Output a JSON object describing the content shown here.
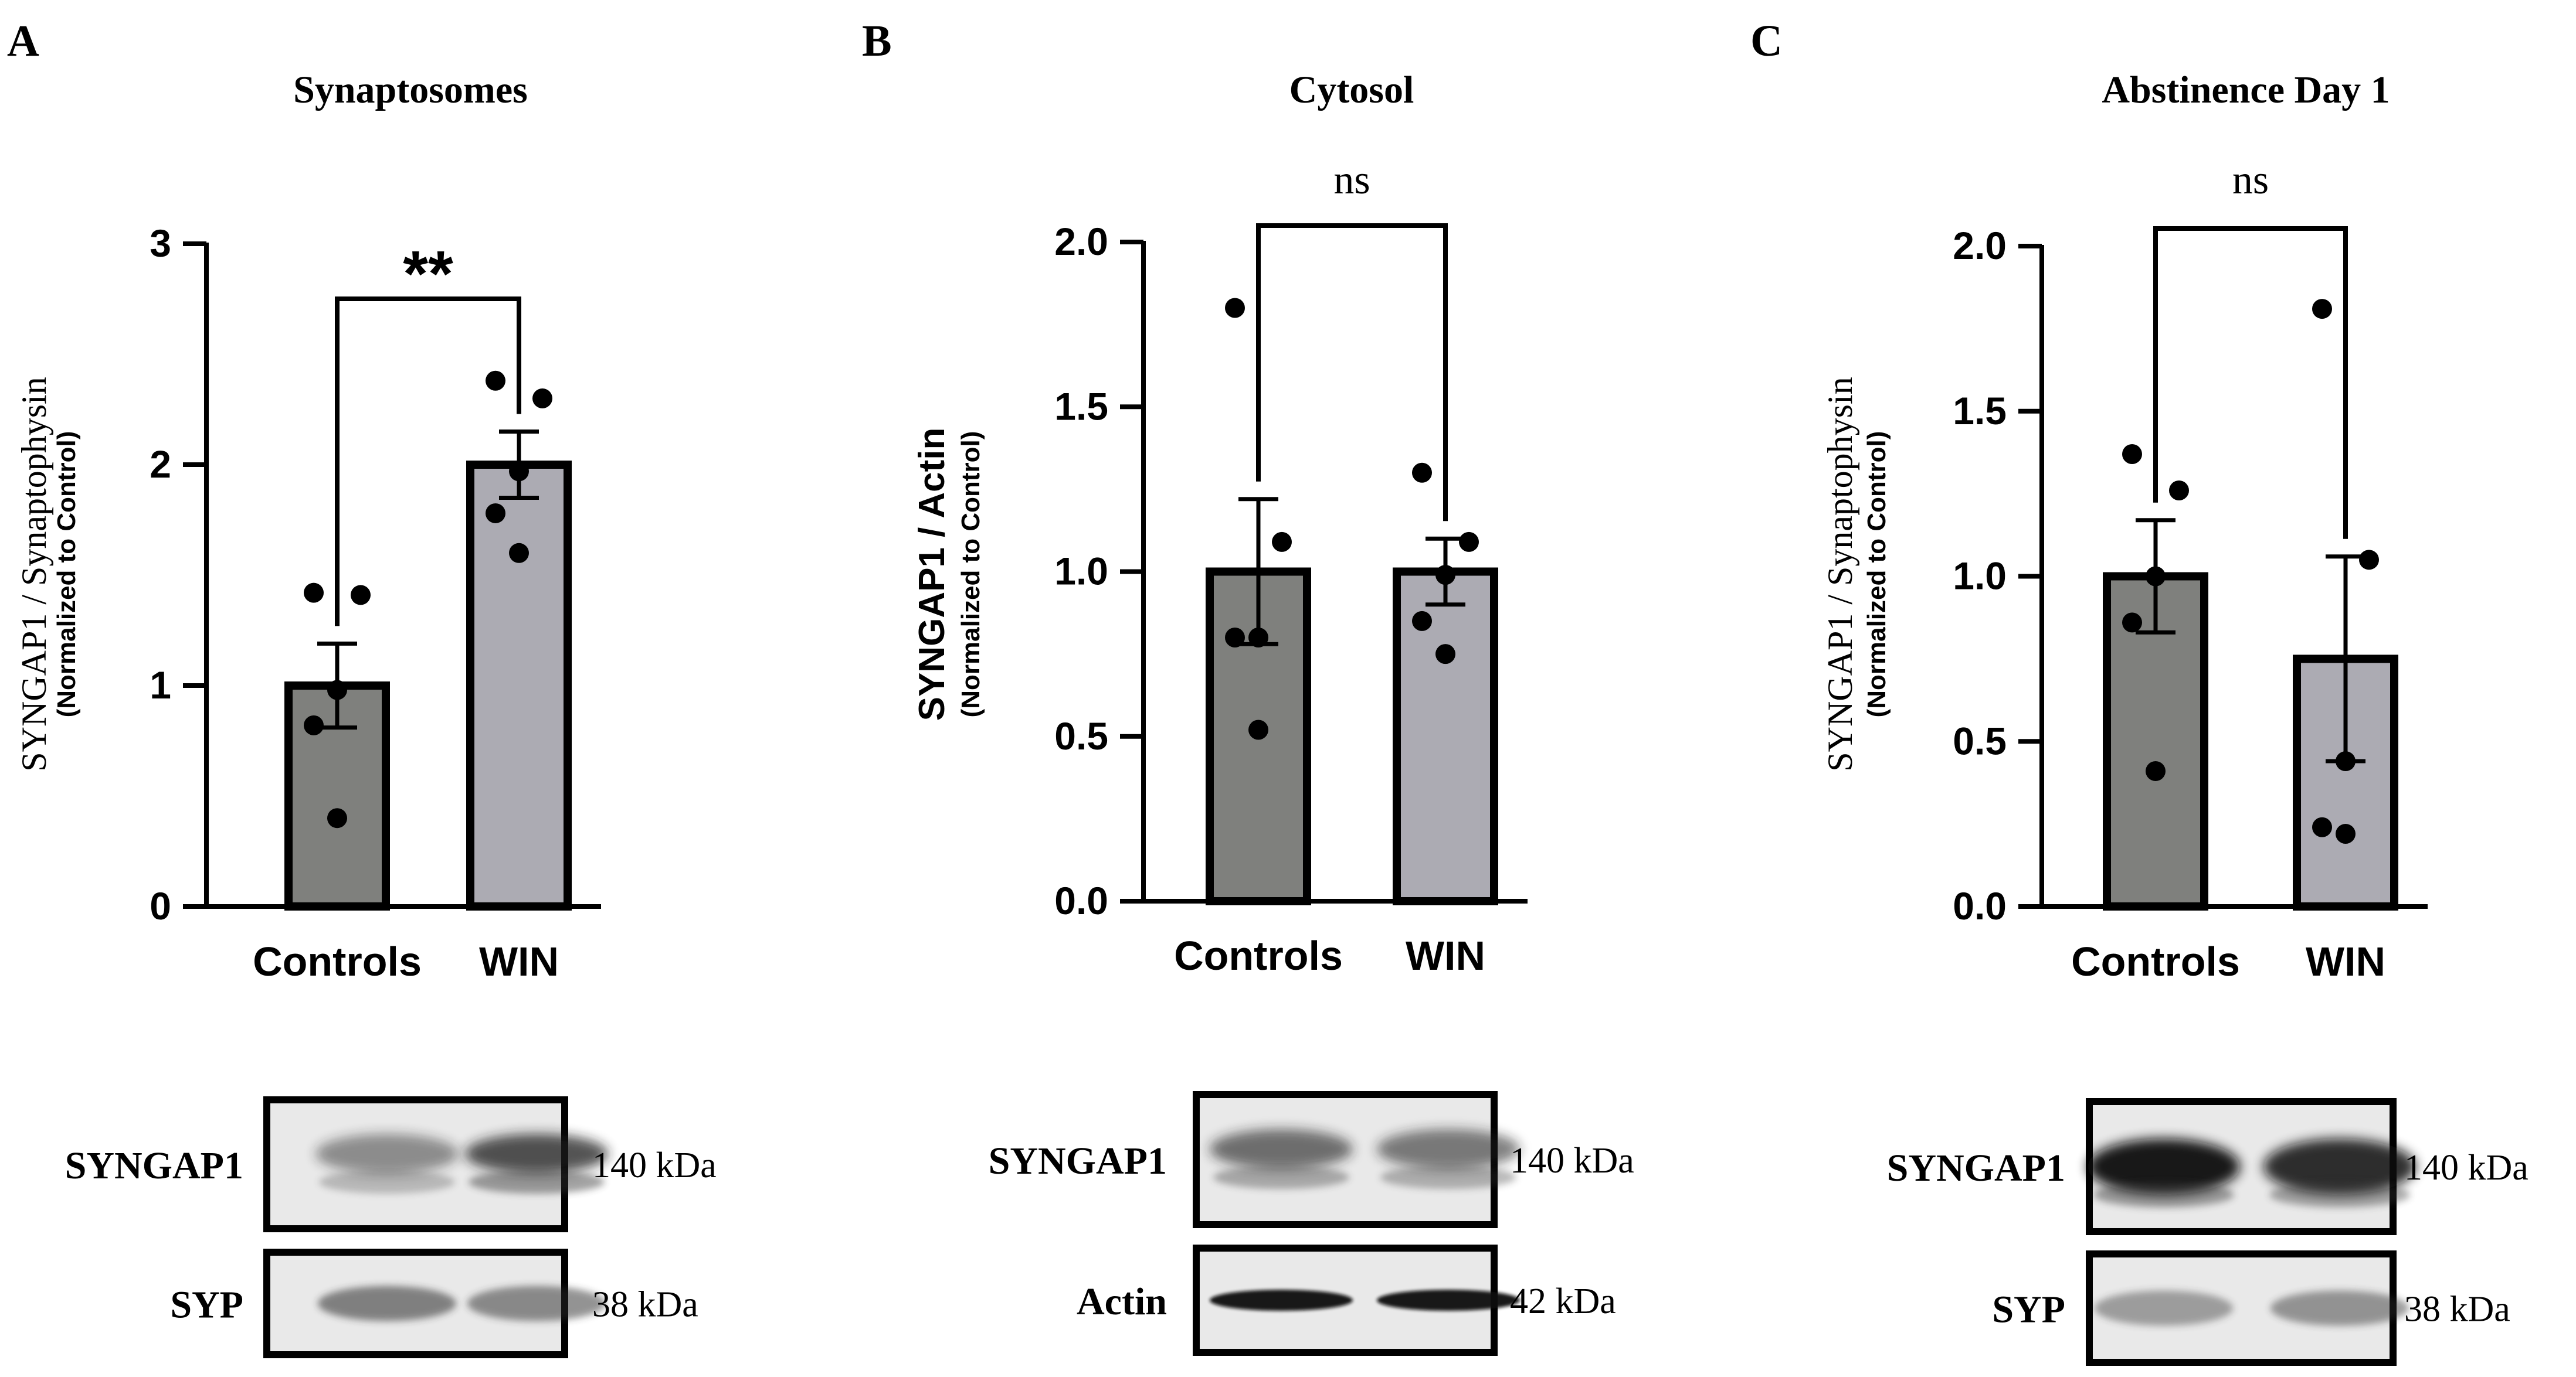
{
  "panels": [
    {
      "letter": "A",
      "title": "Synaptosomes",
      "ylabel": "SYNGAP1 / Synaptophysin",
      "ylabel2": "(Normalized to Control)",
      "significance": "**",
      "blots": [
        {
          "protein": "SYNGAP1",
          "size": "140 kDa",
          "style": "diffuse",
          "intensity": [
            0.45,
            0.75
          ]
        },
        {
          "protein": "SYP",
          "size": "38 kDa",
          "style": "band",
          "intensity": [
            0.55,
            0.5
          ]
        }
      ]
    },
    {
      "letter": "B",
      "title": "Cytosol",
      "ylabel": "SYNGAP1 / Actin",
      "ylabel2": "(Normalized to Control)",
      "significance": "ns",
      "blots": [
        {
          "protein": "SYNGAP1",
          "size": "140 kDa",
          "style": "diffuse",
          "intensity": [
            0.6,
            0.55
          ]
        },
        {
          "protein": "Actin",
          "size": "42 kDa",
          "style": "sharp",
          "intensity": [
            0.95,
            0.95
          ]
        }
      ]
    },
    {
      "letter": "C",
      "title": "Abstinence Day 1",
      "ylabel": "SYNGAP1 / Synaptophysin",
      "ylabel2": "(Normalized to Control)",
      "significance": "ns",
      "blots": [
        {
          "protein": "SYNGAP1",
          "size": "140 kDa",
          "style": "strong",
          "intensity": [
            0.95,
            0.85
          ]
        },
        {
          "protein": "SYP",
          "size": "38 kDa",
          "style": "band",
          "intensity": [
            0.4,
            0.45
          ]
        }
      ]
    }
  ],
  "chart_data": [
    {
      "type": "bar",
      "title": "Synaptosomes",
      "ylabel": "SYNGAP1 / Synaptophysin (Normalized to Control)",
      "categories": [
        "Controls",
        "WIN"
      ],
      "values": [
        1.0,
        2.0
      ],
      "errors": [
        0.19,
        0.15
      ],
      "points": [
        [
          1.42,
          1.41,
          0.98,
          0.82,
          0.4
        ],
        [
          2.38,
          2.3,
          1.97,
          1.78,
          1.6
        ]
      ],
      "bar_colors": [
        "#7f807d",
        "#acabb3"
      ],
      "ylim": [
        0,
        3
      ],
      "yticks": [
        "0",
        "1",
        "2",
        "3"
      ],
      "ytick_values": [
        0,
        1,
        2,
        3
      ]
    },
    {
      "type": "bar",
      "title": "Cytosol",
      "ylabel": "SYNGAP1 / Actin (Normalized to Control)",
      "categories": [
        "Controls",
        "WIN"
      ],
      "values": [
        1.0,
        1.0
      ],
      "errors": [
        0.22,
        0.1
      ],
      "points": [
        [
          1.8,
          1.09,
          0.8,
          0.8,
          0.52
        ],
        [
          1.3,
          1.09,
          0.99,
          0.85,
          0.75
        ]
      ],
      "bar_colors": [
        "#7f807d",
        "#acabb3"
      ],
      "ylim": [
        0,
        2
      ],
      "yticks": [
        "0.0",
        "0.5",
        "1.0",
        "1.5",
        "2.0"
      ],
      "ytick_values": [
        0,
        0.5,
        1.0,
        1.5,
        2.0
      ]
    },
    {
      "type": "bar",
      "title": "Abstinence Day 1",
      "ylabel": "SYNGAP1 / Synaptophysin (Normalized to Control)",
      "categories": [
        "Controls",
        "WIN"
      ],
      "values": [
        1.0,
        0.75
      ],
      "errors": [
        0.17,
        0.31
      ],
      "points": [
        [
          1.37,
          1.26,
          1.0,
          0.86,
          0.41
        ],
        [
          1.81,
          1.05,
          0.44,
          0.24,
          0.22
        ]
      ],
      "bar_colors": [
        "#7f807d",
        "#acabb3"
      ],
      "ylim": [
        0,
        2
      ],
      "yticks": [
        "0.0",
        "0.5",
        "1.0",
        "1.5",
        "2.0"
      ],
      "ytick_values": [
        0,
        0.5,
        1.0,
        1.5,
        2.0
      ]
    }
  ]
}
